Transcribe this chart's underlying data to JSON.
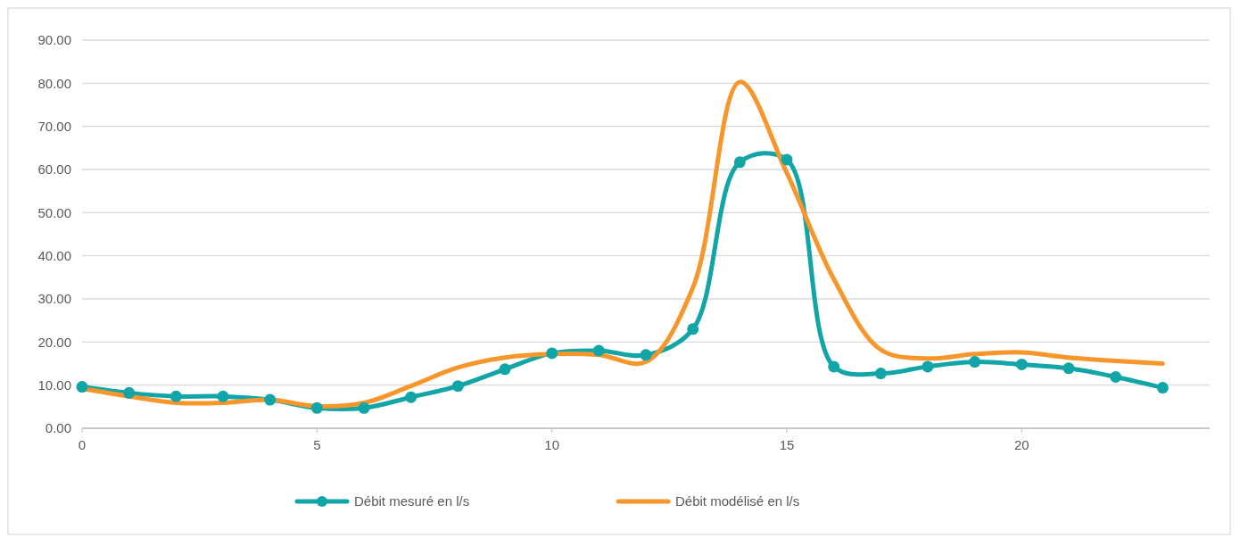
{
  "chart_data": {
    "type": "line",
    "x": [
      0,
      1,
      2,
      3,
      4,
      5,
      6,
      7,
      8,
      9,
      10,
      11,
      12,
      13,
      14,
      15,
      16,
      17,
      18,
      19,
      20,
      21,
      22,
      23
    ],
    "series": [
      {
        "name": "Débit mesuré en l/s",
        "color": "#12a5a8",
        "marker": "circle",
        "values": [
          9.6,
          8.2,
          7.4,
          7.4,
          6.6,
          4.7,
          4.7,
          7.2,
          9.8,
          13.7,
          17.4,
          18.0,
          17.0,
          23.0,
          61.7,
          62.3,
          14.3,
          12.7,
          14.3,
          15.4,
          14.8,
          13.9,
          11.9,
          9.4
        ]
      },
      {
        "name": "Débit modélisé en l/s",
        "color": "#f7962a",
        "marker": "none",
        "values": [
          9.2,
          7.4,
          5.9,
          5.9,
          6.6,
          5.1,
          5.9,
          9.8,
          14.1,
          16.4,
          17.2,
          17.0,
          15.4,
          32.6,
          80.3,
          59.2,
          34.6,
          18.2,
          16.2,
          17.2,
          17.6,
          16.4,
          15.6,
          15.0
        ]
      }
    ],
    "xlim": [
      0,
      24
    ],
    "xticks": [
      0,
      5,
      10,
      15,
      20
    ],
    "ylim": [
      0,
      90
    ],
    "yticks": [
      {
        "value": 0,
        "label": "0.00"
      },
      {
        "value": 10,
        "label": "10.00"
      },
      {
        "value": 20,
        "label": "20.00"
      },
      {
        "value": 30,
        "label": "30.00"
      },
      {
        "value": 40,
        "label": "40.00"
      },
      {
        "value": 50,
        "label": "50.00"
      },
      {
        "value": 60,
        "label": "60.00"
      },
      {
        "value": 70,
        "label": "70.00"
      },
      {
        "value": 80,
        "label": "80.00"
      },
      {
        "value": 90,
        "label": "90.00"
      }
    ],
    "grid": "y",
    "legend": "bottom",
    "line_style": "solid"
  }
}
